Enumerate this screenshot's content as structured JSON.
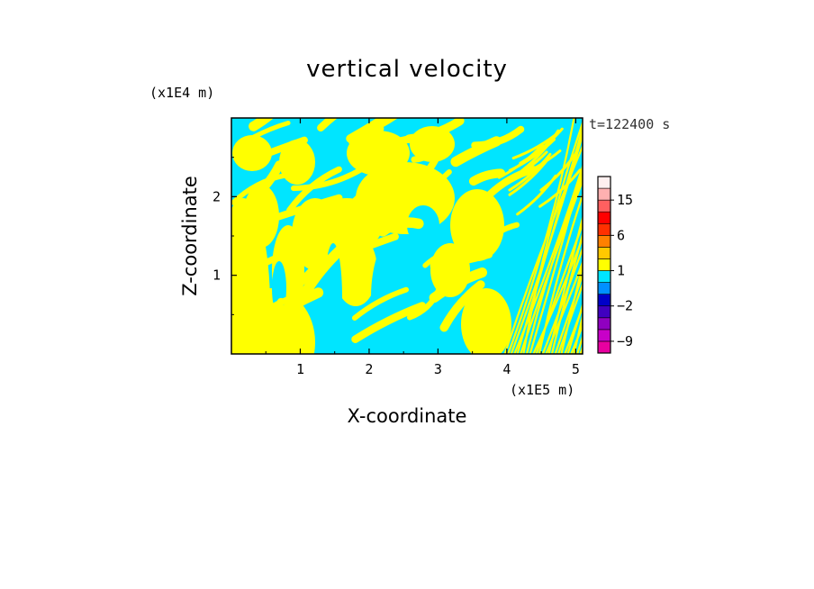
{
  "chart_data": {
    "type": "heatmap",
    "title": "vertical velocity",
    "xlabel": "X-coordinate",
    "ylabel": "Z-coordinate",
    "x_unit": "(x1E5 m)",
    "y_unit": "(x1E4 m)",
    "time_label": "t=122400 s",
    "xlim": [
      0,
      5.1
    ],
    "ylim": [
      0,
      3.0
    ],
    "x_ticks": [
      1,
      2,
      3,
      4,
      5
    ],
    "y_ticks": [
      1,
      2
    ],
    "dominant_colors": {
      "positive": "#ffff00",
      "negative": "#00e5ff"
    },
    "colorbar": {
      "levels": [
        -12,
        -9,
        -6,
        -4,
        -2,
        -1,
        0,
        1,
        2,
        4,
        6,
        9,
        12,
        15,
        18,
        24
      ],
      "colors": [
        "#e800a0",
        "#c800c8",
        "#9000c0",
        "#4000c0",
        "#0000c8",
        "#0090ff",
        "#00e5ff",
        "#ffff00",
        "#ffc800",
        "#ff8000",
        "#ff3000",
        "#ff0000",
        "#ff6060",
        "#ffb0b0",
        "#fff0f0"
      ],
      "labels": [
        {
          "value": -9,
          "text": "−9"
        },
        {
          "value": -2,
          "text": "−2"
        },
        {
          "value": 1,
          "text": "1"
        },
        {
          "value": 6,
          "text": "6"
        },
        {
          "value": 15,
          "text": "15"
        }
      ]
    }
  }
}
